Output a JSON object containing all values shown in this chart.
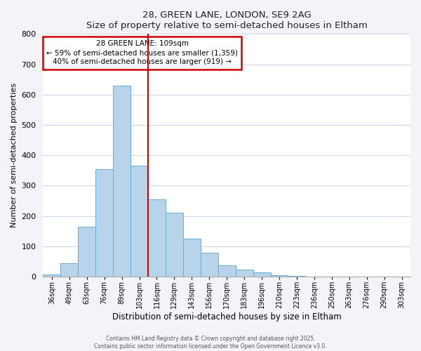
{
  "title": "28, GREEN LANE, LONDON, SE9 2AG",
  "subtitle": "Size of property relative to semi-detached houses in Eltham",
  "xlabel": "Distribution of semi-detached houses by size in Eltham",
  "ylabel": "Number of semi-detached properties",
  "bar_labels": [
    "36sqm",
    "49sqm",
    "63sqm",
    "76sqm",
    "89sqm",
    "103sqm",
    "116sqm",
    "129sqm",
    "143sqm",
    "156sqm",
    "170sqm",
    "183sqm",
    "196sqm",
    "210sqm",
    "223sqm",
    "236sqm",
    "250sqm",
    "263sqm",
    "276sqm",
    "290sqm",
    "303sqm"
  ],
  "bar_values": [
    8,
    45,
    165,
    355,
    630,
    365,
    255,
    210,
    125,
    78,
    37,
    23,
    13,
    5,
    2,
    1,
    1,
    0,
    0,
    0,
    1
  ],
  "bar_color": "#b8d4eb",
  "bar_edge_color": "#6aabd2",
  "vline_x": 5.5,
  "vline_color": "#cc0000",
  "annotation_title": "28 GREEN LANE: 109sqm",
  "annotation_line1": "← 59% of semi-detached houses are smaller (1,359)",
  "annotation_line2": "40% of semi-detached houses are larger (919) →",
  "annotation_box_color": "#cc0000",
  "ylim": [
    0,
    800
  ],
  "yticks": [
    0,
    100,
    200,
    300,
    400,
    500,
    600,
    700,
    800
  ],
  "footer1": "Contains HM Land Registry data © Crown copyright and database right 2025.",
  "footer2": "Contains public sector information licensed under the Open Government Licence v3.0.",
  "bg_color": "#f2f4f8",
  "plot_bg_color": "#ffffff",
  "grid_color": "#d0d8e8"
}
